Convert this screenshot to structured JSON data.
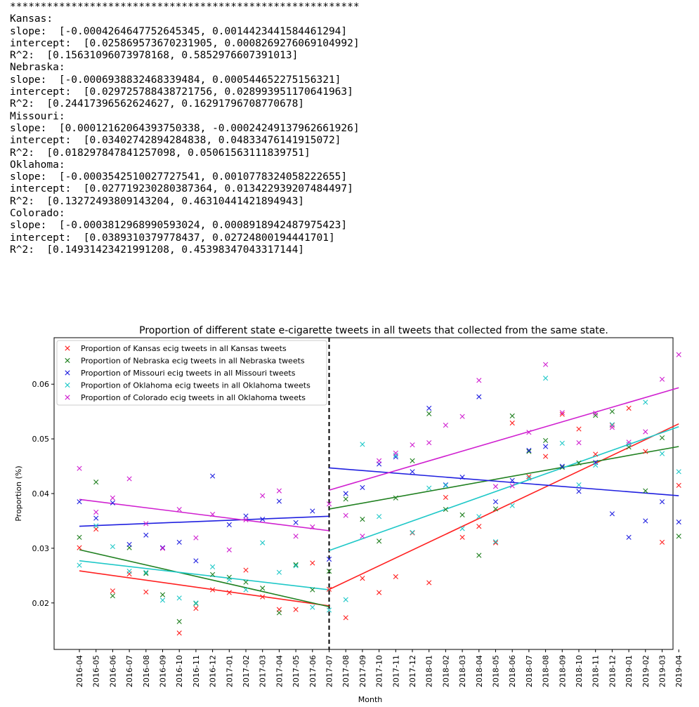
{
  "console": {
    "lines": [
      "*********************************************************",
      "Kansas:",
      "slope:  [-0.0004264647752645345, 0.0014423441584461294]",
      "intercept:  [0.025869573670231905, 0.0008269276069104992]",
      "R^2:  [0.15631096073978168, 0.5852976607391013]",
      "Nebraska:",
      "slope:  [-0.0006938832468339484, 0.000544652275156321]",
      "intercept:  [0.029725788438721756, 0.028993951170641963]",
      "R^2:  [0.24417396562624627, 0.16291796708770678]",
      "Missouri:",
      "slope:  [0.00012162064393750338, -0.00024249137962661926]",
      "intercept:  [0.03402742894284838, 0.04833476141915072]",
      "R^2:  [0.018297847841257098, 0.05061563111839751]",
      "Oklahoma:",
      "slope:  [-0.0003542510027727541, 0.0010778324058222655]",
      "intercept:  [0.027719230280387364, 0.013422939207484497]",
      "R^2:  [0.13272493809143204, 0.46310441421894943]",
      "Colorado:",
      "slope:  [-0.0003812968990593024, 0.0008918942487975423]",
      "intercept:  [0.0389310379778437, 0.02724800194441701]",
      "R^2:  [0.14931423421991208, 0.45398347043317144]"
    ]
  },
  "chart_data": {
    "type": "scatter",
    "title": "Proportion of different state e-cigarette tweets in all tweets that collected from the same state.",
    "xlabel": "Month",
    "ylabel": "Proportion (%)",
    "ylim": [
      0.0115,
      0.0685
    ],
    "yticks": [
      0.02,
      0.03,
      0.04,
      0.05,
      0.06
    ],
    "ytick_labels": [
      "0.02",
      "0.03",
      "0.04",
      "0.05",
      "0.06"
    ],
    "categories": [
      "2016-04",
      "2016-05",
      "2016-06",
      "2016-07",
      "2016-08",
      "2016-09",
      "2016-10",
      "2016-11",
      "2016-12",
      "2017-01",
      "2017-02",
      "2017-03",
      "2017-04",
      "2017-05",
      "2017-06",
      "2017-07",
      "2017-08",
      "2017-09",
      "2017-10",
      "2017-11",
      "2017-12",
      "2018-01",
      "2018-02",
      "2018-03",
      "2018-04",
      "2018-05",
      "2018-06",
      "2018-07",
      "2018-08",
      "2018-09",
      "2018-10",
      "2018-11",
      "2018-12",
      "2019-01",
      "2019-02",
      "2019-03",
      "2019-04"
    ],
    "breakpoint": "2017-07",
    "legend_position": "top-left",
    "grid": false,
    "series": [
      {
        "name": "Proportion of Kansas ecig tweets in all Kansas tweets",
        "color": "#ff2020",
        "values": [
          0.0301,
          0.0335,
          0.0222,
          0.0253,
          0.022,
          0.03,
          0.0145,
          0.019,
          0.0224,
          0.0219,
          0.026,
          0.0211,
          0.0188,
          0.0188,
          0.0273,
          0.0225,
          0.0173,
          0.0245,
          0.0219,
          0.0248,
          0.0328,
          0.0237,
          0.0393,
          0.032,
          0.034,
          0.031,
          0.0529,
          0.0431,
          0.0468,
          0.0545,
          0.0518,
          0.0472,
          0.0525,
          0.0556,
          0.0477,
          0.0311,
          0.0415
        ],
        "fit": [
          [
            0.025869573670231905,
            -0.0004264647752645345
          ],
          [
            0.0008269276069104992,
            0.0014423441584461294
          ]
        ]
      },
      {
        "name": "Proportion of Nebraska ecig tweets in all Nebraska tweets",
        "color": "#208020",
        "values": [
          0.032,
          0.0421,
          0.0213,
          0.0301,
          0.0254,
          0.0215,
          0.0166,
          0.0199,
          0.0252,
          0.0247,
          0.0238,
          0.0227,
          0.0182,
          0.027,
          0.0224,
          0.0258,
          0.039,
          0.0353,
          0.0313,
          0.0392,
          0.046,
          0.0546,
          0.0371,
          0.0361,
          0.0287,
          0.0372,
          0.0542,
          0.0477,
          0.0497,
          0.0448,
          0.0456,
          0.0543,
          0.055,
          0.0485,
          0.0405,
          0.0502,
          0.0322
        ],
        "fit": [
          [
            0.029725788438721756,
            -0.0006938832468339484
          ],
          [
            0.028993951170641963,
            0.000544652275156321
          ]
        ]
      },
      {
        "name": "Proportion of Missouri ecig tweets in all Missouri tweets",
        "color": "#2020e0",
        "values": [
          0.0385,
          0.0355,
          0.0383,
          0.0307,
          0.0324,
          0.0301,
          0.0311,
          0.0277,
          0.0432,
          0.0343,
          0.0359,
          0.0353,
          0.0386,
          0.0347,
          0.0368,
          0.028,
          0.04,
          0.0411,
          0.0454,
          0.0467,
          0.044,
          0.0556,
          0.0416,
          0.043,
          0.0577,
          0.0385,
          0.0424,
          0.0479,
          0.0486,
          0.045,
          0.0404,
          0.0457,
          0.0363,
          0.032,
          0.035,
          0.0385,
          0.0348
        ],
        "fit": [
          [
            0.03402742894284838,
            0.00012162064393750338
          ],
          [
            0.04833476141915072,
            -0.00024249137962661926
          ]
        ]
      },
      {
        "name": "Proportion of Oklahoma ecig tweets in all Oklahoma tweets",
        "color": "#20c8c8",
        "values": [
          0.0269,
          0.0341,
          0.0303,
          0.0258,
          0.0256,
          0.0205,
          0.0209,
          0.02,
          0.0266,
          0.0242,
          0.0224,
          0.031,
          0.0256,
          0.0268,
          0.0192,
          0.0187,
          0.0206,
          0.049,
          0.0358,
          0.047,
          0.0329,
          0.041,
          0.0415,
          0.0336,
          0.0358,
          0.0312,
          0.0378,
          0.0428,
          0.0611,
          0.0492,
          0.0416,
          0.0452,
          0.0526,
          0.049,
          0.0567,
          0.0473,
          0.044
        ],
        "fit": [
          [
            0.027719230280387364,
            -0.0003542510027727541
          ],
          [
            0.013422939207484497,
            0.0010778324058222655
          ]
        ]
      },
      {
        "name": "Proportion of Colorado ecig tweets in all Oklahoma tweets",
        "color": "#d020d0",
        "values": [
          0.0446,
          0.0366,
          0.0392,
          0.0427,
          0.0345,
          0.03,
          0.0371,
          0.0319,
          0.0362,
          0.0297,
          0.0352,
          0.0396,
          0.0405,
          0.0322,
          0.0339,
          0.0381,
          0.036,
          0.0322,
          0.046,
          0.0474,
          0.0489,
          0.0493,
          0.0525,
          0.0541,
          0.0607,
          0.0413,
          0.0414,
          0.0512,
          0.0636,
          0.0548,
          0.0493,
          0.0547,
          0.0521,
          0.0494,
          0.0513,
          0.0609,
          0.0654
        ],
        "fit": [
          [
            0.0389310379778437,
            -0.0003812968990593024
          ],
          [
            0.02724800194441701,
            0.0008918942487975423
          ]
        ]
      }
    ]
  }
}
